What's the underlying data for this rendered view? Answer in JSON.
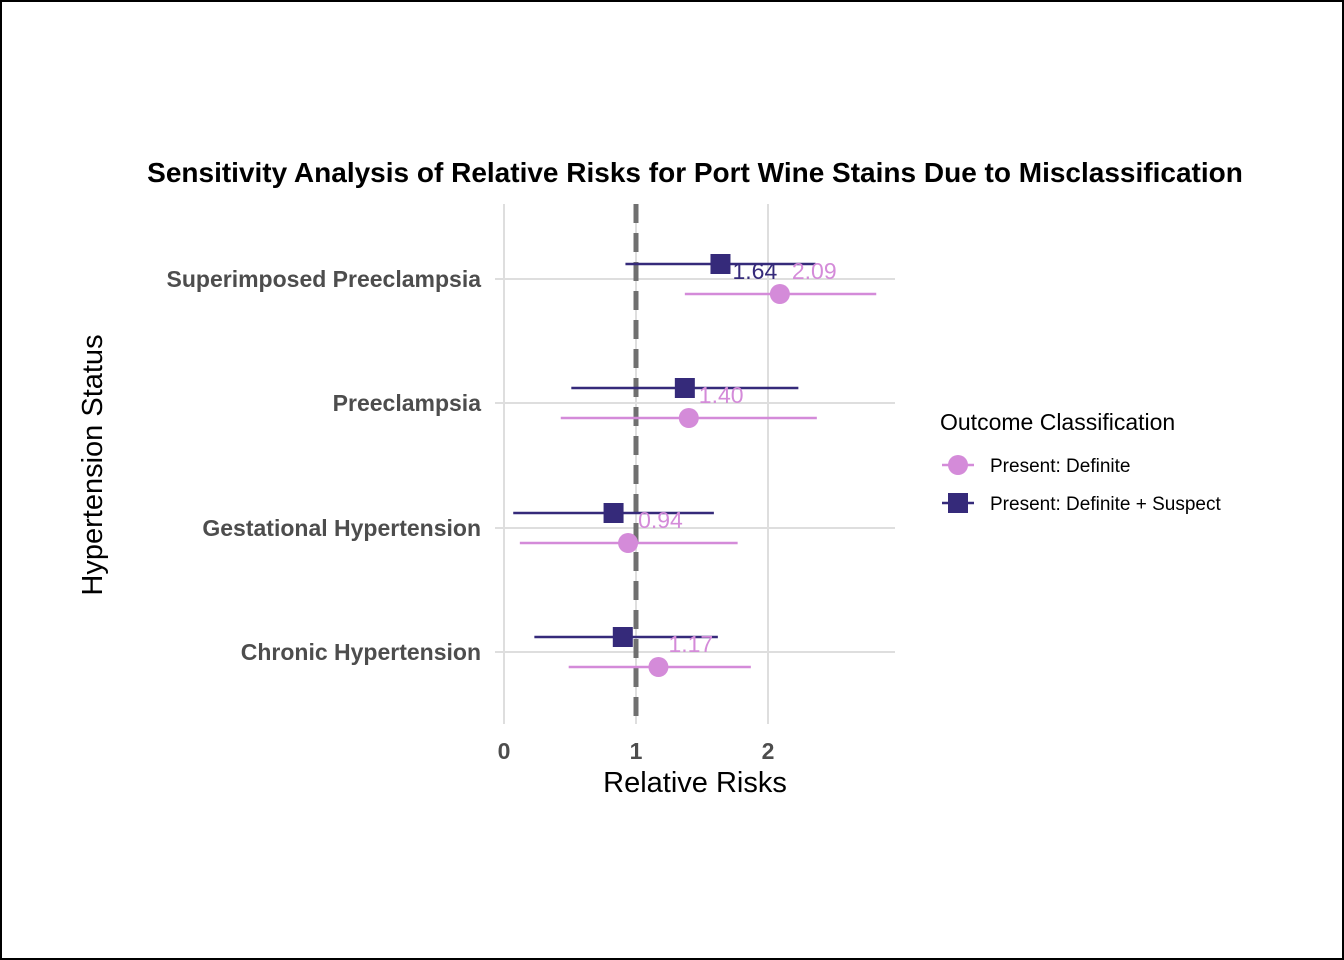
{
  "chart_data": {
    "type": "scatter",
    "subtype": "forest-plot",
    "title": "Sensitivity Analysis of Relative Risks for Port Wine Stains Due to Misclassification",
    "xlabel": "Relative Risks",
    "ylabel": "Hypertension Status",
    "categories": [
      "Superimposed Preeclampsia",
      "Preeclampsia",
      "Gestational Hypertension",
      "Chronic Hypertension"
    ],
    "x_ticks": [
      "0",
      "1",
      "2"
    ],
    "xlim": [
      -0.05,
      2.95
    ],
    "reference_line": 1,
    "grid": true,
    "legend": {
      "title": "Outcome Classification",
      "placement": "right"
    },
    "series": [
      {
        "name": "Present: Definite",
        "marker": "circle",
        "color": "#d48bd9",
        "estimates": [
          2.09,
          1.4,
          0.94,
          1.17
        ],
        "lower": [
          1.37,
          0.43,
          0.12,
          0.49
        ],
        "upper": [
          2.82,
          2.37,
          1.77,
          1.87
        ],
        "labels": [
          "2.09",
          "1.40",
          "0.94",
          "1.17"
        ]
      },
      {
        "name": "Present: Definite + Suspect",
        "marker": "square",
        "color": "#352a7a",
        "estimates": [
          1.64,
          1.37,
          0.83,
          0.9
        ],
        "lower": [
          0.92,
          0.51,
          0.07,
          0.23
        ],
        "upper": [
          2.36,
          2.23,
          1.59,
          1.62
        ],
        "labels": [
          "1.64",
          "",
          "",
          ""
        ]
      }
    ]
  }
}
